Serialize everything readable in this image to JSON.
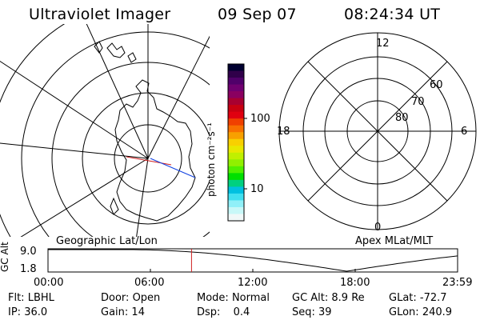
{
  "header": {
    "instrument": "Ultraviolet Imager",
    "date": "09 Sep 07",
    "time": "08:24:34 UT"
  },
  "colorbar": {
    "unit_label": "photon cm⁻²s⁻¹",
    "tick_labels": [
      "100",
      "10"
    ],
    "colors": [
      "#000030",
      "#30004a",
      "#50006a",
      "#700070",
      "#8a0060",
      "#a80030",
      "#c80010",
      "#e00010",
      "#f04000",
      "#f87000",
      "#f8a000",
      "#f8d000",
      "#e8e800",
      "#c0f000",
      "#90f000",
      "#50f000",
      "#00e000",
      "#00d080",
      "#00c0e0",
      "#40e0f0",
      "#90f0f8",
      "#c8f8f8",
      "#f0f8f8"
    ]
  },
  "left_map": {
    "caption": "Geographic Lat/Lon"
  },
  "right_map": {
    "caption": "Apex MLat/MLT",
    "lat_labels": [
      "60",
      "70",
      "80"
    ],
    "mlt_labels": [
      "12",
      "18",
      "6",
      "0"
    ]
  },
  "altitude_plot": {
    "ylabel": "GC Alt",
    "yticks": [
      "9.0",
      "1.8"
    ],
    "xticks": [
      "00:00",
      "06:00",
      "12:00",
      "18:00",
      "23:59"
    ],
    "current_time_marker_hours": 8.41
  },
  "status": {
    "row1": [
      {
        "label": "Flt:",
        "value": "LBHL"
      },
      {
        "label": "Door:",
        "value": "Open"
      },
      {
        "label": "Mode:",
        "value": "Normal"
      },
      {
        "label": "GC Alt:",
        "value": "8.9 Re"
      },
      {
        "label": "GLat:",
        "value": "-72.7"
      }
    ],
    "row2": [
      {
        "label": "IP:",
        "value": "36.0"
      },
      {
        "label": "Gain:",
        "value": "14"
      },
      {
        "label": "Dsp:",
        "value": "0.4"
      },
      {
        "label": "Seq:",
        "value": "39"
      },
      {
        "label": "GLon:",
        "value": "240.9"
      }
    ]
  }
}
